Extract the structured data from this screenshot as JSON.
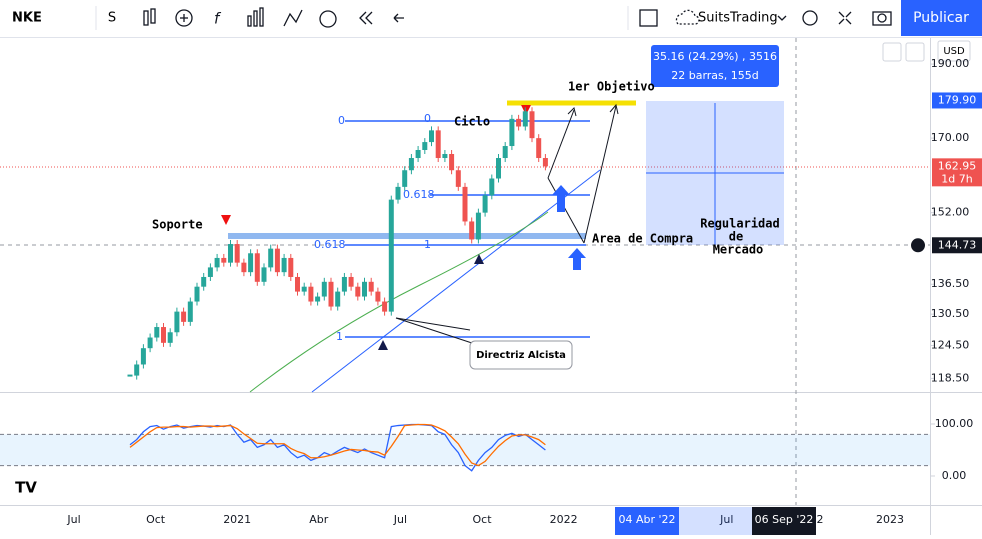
{
  "toolbar": {
    "symbol": "NKE",
    "interval": "S",
    "account": "SuitsTrading",
    "publish": "Publicar",
    "currency": "USD"
  },
  "price_axis": {
    "last_price": {
      "value": 162.95,
      "label": "162.95"
    },
    "countdown": "1d 7h",
    "target": {
      "value": 179.9,
      "label": "179.90"
    },
    "crosshair": {
      "value": 144.73,
      "label": "144.73"
    }
  },
  "time_axis": {
    "range_start": "04 Abr '22",
    "range_end": "06 Sep '22",
    "partial": "2"
  },
  "measure": {
    "line1": "35.16 (24.29%) , 3516",
    "line2": "22 barras, 155d"
  },
  "drawings": {
    "support": "Soporte",
    "cycle": "Ciclo",
    "target": "1er Objetivo",
    "buy_area": "Area de Compra",
    "regularity": [
      "Regularidad",
      "de",
      "Mercado"
    ],
    "trendline": "Directriz Alcista",
    "fib_upper": [
      "0",
      "0.618",
      "1"
    ],
    "fib_lower": [
      "0.618",
      "1"
    ],
    "fib_cycle": "0"
  },
  "chart_data": [
    {
      "type": "candlestick",
      "log_scale": true,
      "up_color": "#26a69a",
      "down_color": "#ef5350",
      "values": [
        119,
        121,
        124,
        126,
        128,
        125,
        127,
        131,
        129,
        133,
        136,
        138,
        140,
        142,
        141,
        145,
        141,
        139,
        143,
        137,
        140,
        144,
        139,
        142,
        138,
        135,
        136,
        133,
        134,
        137,
        132,
        135,
        138,
        136,
        134,
        137,
        135,
        133,
        131,
        155,
        158,
        162,
        165,
        167,
        169,
        172,
        165,
        166,
        162,
        158,
        150,
        146,
        152,
        156,
        160,
        165,
        168,
        175,
        173,
        177,
        170,
        165,
        162.95
      ],
      "ylim": [
        116.1,
        197.6
      ],
      "yticks": [
        {
          "value": 190,
          "label": "190.00"
        },
        {
          "value": 170,
          "label": "170.00"
        },
        {
          "value": 152,
          "label": "152.00"
        },
        {
          "value": 136.5,
          "label": "136.50"
        },
        {
          "value": 130.5,
          "label": "130.50"
        },
        {
          "value": 124.5,
          "label": "124.50"
        },
        {
          "value": 118.5,
          "label": "118.50"
        }
      ],
      "x_labels": [
        "Jul",
        "Oct",
        "2021",
        "Abr",
        "Jul",
        "Oct",
        "2022",
        null,
        "Jul",
        null,
        "2023"
      ]
    },
    {
      "type": "line",
      "ylim": [
        -55.8,
        161.5
      ],
      "yticks": [
        {
          "value": 100,
          "label": "100.00"
        },
        {
          "value": 0,
          "label": "0.00"
        }
      ],
      "bands": [
        20,
        80
      ],
      "series": [
        {
          "color": "#2962ff",
          "values": [
            60,
            70,
            85,
            95,
            97,
            90,
            95,
            98,
            92,
            95,
            97,
            96,
            94,
            97,
            95,
            98,
            80,
            65,
            70,
            55,
            60,
            70,
            55,
            60,
            45,
            35,
            40,
            30,
            35,
            45,
            40,
            48,
            55,
            50,
            45,
            52,
            45,
            40,
            35,
            95,
            97,
            98,
            99,
            99,
            98,
            97,
            85,
            80,
            60,
            45,
            20,
            10,
            30,
            45,
            55,
            70,
            78,
            82,
            76,
            80,
            70,
            60,
            50
          ]
        },
        {
          "color": "#ff6d00",
          "values": [
            55,
            65,
            75,
            85,
            93,
            94,
            94,
            95,
            95,
            94,
            95,
            96,
            96,
            95,
            96,
            97,
            91,
            81,
            72,
            63,
            62,
            62,
            62,
            62,
            53,
            47,
            43,
            35,
            35,
            37,
            40,
            44,
            48,
            51,
            50,
            49,
            47,
            46,
            40,
            57,
            76,
            97,
            98,
            99,
            99,
            98,
            93,
            87,
            75,
            62,
            42,
            25,
            20,
            28,
            43,
            57,
            68,
            77,
            79,
            79,
            75,
            70,
            60
          ]
        }
      ]
    }
  ]
}
